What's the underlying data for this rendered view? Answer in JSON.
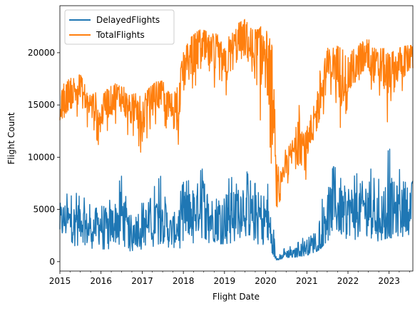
{
  "chart_data": {
    "type": "line",
    "title": "",
    "xlabel": "Flight Date",
    "ylabel": "Flight Count",
    "xlim": [
      "2015-01-01",
      "2023-07-31"
    ],
    "ylim": [
      -900,
      24500
    ],
    "x_ticks": [
      {
        "value": "2015-01-01",
        "label": "2015"
      },
      {
        "value": "2016-01-01",
        "label": "2016"
      },
      {
        "value": "2017-01-01",
        "label": "2017"
      },
      {
        "value": "2018-01-01",
        "label": "2018"
      },
      {
        "value": "2019-01-01",
        "label": "2019"
      },
      {
        "value": "2020-01-01",
        "label": "2020"
      },
      {
        "value": "2021-01-01",
        "label": "2021"
      },
      {
        "value": "2022-01-01",
        "label": "2022"
      },
      {
        "value": "2023-01-01",
        "label": "2023"
      }
    ],
    "y_ticks": [
      {
        "value": 0,
        "label": "0"
      },
      {
        "value": 5000,
        "label": "5000"
      },
      {
        "value": 10000,
        "label": "10000"
      },
      {
        "value": 15000,
        "label": "15000"
      },
      {
        "value": 20000,
        "label": "20000"
      }
    ],
    "grid": false,
    "legend": {
      "position": "top-left"
    },
    "series": [
      {
        "name": "DelayedFlights",
        "color": "#1f77b4",
        "x": [
          "2015-01-01",
          "2015-03-01",
          "2015-05-01",
          "2015-07-01",
          "2015-09-01",
          "2015-11-01",
          "2016-01-01",
          "2016-03-01",
          "2016-05-01",
          "2016-07-01",
          "2016-09-01",
          "2016-11-01",
          "2017-01-01",
          "2017-03-01",
          "2017-05-01",
          "2017-07-01",
          "2017-09-01",
          "2017-11-01",
          "2018-01-01",
          "2018-03-01",
          "2018-05-01",
          "2018-07-01",
          "2018-09-01",
          "2018-11-01",
          "2019-01-01",
          "2019-03-01",
          "2019-05-01",
          "2019-07-01",
          "2019-09-01",
          "2019-11-01",
          "2020-01-01",
          "2020-03-01",
          "2020-04-01",
          "2020-05-01",
          "2020-07-01",
          "2020-09-01",
          "2020-11-01",
          "2021-01-01",
          "2021-03-01",
          "2021-05-01",
          "2021-07-01",
          "2021-09-01",
          "2021-11-01",
          "2022-01-01",
          "2022-03-01",
          "2022-05-01",
          "2022-07-01",
          "2022-09-01",
          "2022-11-01",
          "2023-01-01",
          "2023-03-01",
          "2023-05-01",
          "2023-07-01"
        ],
        "y": [
          3800,
          4000,
          3600,
          4300,
          3000,
          3300,
          3600,
          3200,
          3700,
          4600,
          2800,
          3000,
          3700,
          3200,
          4200,
          4600,
          2800,
          3100,
          4400,
          4400,
          5000,
          5600,
          4000,
          4200,
          4300,
          4600,
          5200,
          5600,
          4100,
          4400,
          4200,
          2400,
          400,
          300,
          800,
          700,
          1100,
          1400,
          1800,
          2800,
          4600,
          5400,
          4600,
          5000,
          4700,
          5000,
          5500,
          4200,
          4600,
          5000,
          4800,
          5200,
          5500
        ],
        "y_range": [
          [
            1500,
            6000
          ],
          [
            1800,
            6500
          ],
          [
            1500,
            6200
          ],
          [
            1600,
            7000
          ],
          [
            1200,
            5400
          ],
          [
            1300,
            5600
          ],
          [
            1200,
            6400
          ],
          [
            1200,
            5600
          ],
          [
            1400,
            6600
          ],
          [
            1800,
            8200
          ],
          [
            1000,
            5000
          ],
          [
            1100,
            5300
          ],
          [
            1200,
            6800
          ],
          [
            1200,
            5600
          ],
          [
            1600,
            7600
          ],
          [
            1800,
            8400
          ],
          [
            900,
            5000
          ],
          [
            1000,
            5400
          ],
          [
            1600,
            7600
          ],
          [
            1600,
            7800
          ],
          [
            2000,
            8400
          ],
          [
            2400,
            9000
          ],
          [
            1600,
            7200
          ],
          [
            1700,
            7500
          ],
          [
            1700,
            7800
          ],
          [
            1800,
            8000
          ],
          [
            2200,
            8800
          ],
          [
            2600,
            9100
          ],
          [
            1600,
            7400
          ],
          [
            1700,
            7600
          ],
          [
            1600,
            7700
          ],
          [
            800,
            6800
          ],
          [
            150,
            900
          ],
          [
            200,
            600
          ],
          [
            400,
            1500
          ],
          [
            350,
            1400
          ],
          [
            500,
            2000
          ],
          [
            600,
            2600
          ],
          [
            800,
            3300
          ],
          [
            1200,
            5200
          ],
          [
            2000,
            8000
          ],
          [
            2400,
            9200
          ],
          [
            2000,
            7900
          ],
          [
            2300,
            8600
          ],
          [
            2100,
            8200
          ],
          [
            2300,
            8900
          ],
          [
            2500,
            9600
          ],
          [
            1900,
            7600
          ],
          [
            2100,
            8200
          ],
          [
            2300,
            11000
          ],
          [
            2200,
            8600
          ],
          [
            2400,
            9000
          ],
          [
            2600,
            8400
          ]
        ]
      },
      {
        "name": "TotalFlights",
        "color": "#ff7f0e",
        "x": [
          "2015-01-01",
          "2015-03-01",
          "2015-05-01",
          "2015-07-01",
          "2015-09-01",
          "2015-11-01",
          "2016-01-01",
          "2016-03-01",
          "2016-05-01",
          "2016-07-01",
          "2016-09-01",
          "2016-11-01",
          "2017-01-01",
          "2017-03-01",
          "2017-05-01",
          "2017-07-01",
          "2017-09-01",
          "2017-11-01",
          "2018-01-01",
          "2018-03-01",
          "2018-05-01",
          "2018-07-01",
          "2018-09-01",
          "2018-11-01",
          "2019-01-01",
          "2019-03-01",
          "2019-05-01",
          "2019-07-01",
          "2019-09-01",
          "2019-11-01",
          "2020-01-01",
          "2020-03-01",
          "2020-04-01",
          "2020-05-01",
          "2020-07-01",
          "2020-09-01",
          "2020-11-01",
          "2021-01-01",
          "2021-03-01",
          "2021-05-01",
          "2021-07-01",
          "2021-09-01",
          "2021-11-01",
          "2022-01-01",
          "2022-03-01",
          "2022-05-01",
          "2022-07-01",
          "2022-09-01",
          "2022-11-01",
          "2023-01-01",
          "2023-03-01",
          "2023-05-01",
          "2023-07-01"
        ],
        "y": [
          14400,
          15800,
          16300,
          16700,
          15100,
          14900,
          13900,
          15200,
          15700,
          15900,
          14500,
          14600,
          13800,
          15200,
          15900,
          16000,
          14600,
          14800,
          18200,
          19500,
          20000,
          20300,
          19600,
          19700,
          18500,
          20000,
          21000,
          21400,
          20200,
          20100,
          19900,
          16000,
          7500,
          6200,
          9000,
          10500,
          11800,
          10500,
          12800,
          16000,
          18500,
          19000,
          18100,
          17600,
          18500,
          19400,
          19800,
          18600,
          18800,
          17500,
          18600,
          19200,
          19500
        ],
        "y_range": [
          [
            12300,
            16600
          ],
          [
            13400,
            17300
          ],
          [
            13800,
            17700
          ],
          [
            14000,
            17900
          ],
          [
            12900,
            16600
          ],
          [
            12600,
            16300
          ],
          [
            10300,
            15700
          ],
          [
            12700,
            16600
          ],
          [
            13200,
            17000
          ],
          [
            13400,
            17300
          ],
          [
            12000,
            15900
          ],
          [
            12100,
            16100
          ],
          [
            10000,
            15700
          ],
          [
            12600,
            16600
          ],
          [
            13200,
            17200
          ],
          [
            13400,
            17300
          ],
          [
            12200,
            16100
          ],
          [
            10000,
            16300
          ],
          [
            14600,
            20000
          ],
          [
            16400,
            21400
          ],
          [
            17000,
            22000
          ],
          [
            17400,
            22400
          ],
          [
            16800,
            21800
          ],
          [
            16600,
            21800
          ],
          [
            15600,
            20600
          ],
          [
            17000,
            22000
          ],
          [
            18000,
            22800
          ],
          [
            18400,
            23200
          ],
          [
            17200,
            22200
          ],
          [
            12600,
            22200
          ],
          [
            16800,
            23200
          ],
          [
            8000,
            20500
          ],
          [
            5400,
            12000
          ],
          [
            5000,
            8000
          ],
          [
            7200,
            11000
          ],
          [
            8600,
            12500
          ],
          [
            9400,
            15300
          ],
          [
            7600,
            12800
          ],
          [
            10600,
            14800
          ],
          [
            12800,
            18500
          ],
          [
            15800,
            20400
          ],
          [
            16200,
            20800
          ],
          [
            12400,
            20400
          ],
          [
            15000,
            19800
          ],
          [
            15800,
            20400
          ],
          [
            16500,
            21000
          ],
          [
            17000,
            21300
          ],
          [
            15800,
            20400
          ],
          [
            16000,
            20600
          ],
          [
            12500,
            19800
          ],
          [
            15800,
            20300
          ],
          [
            16400,
            20600
          ],
          [
            16800,
            20700
          ]
        ]
      }
    ]
  }
}
